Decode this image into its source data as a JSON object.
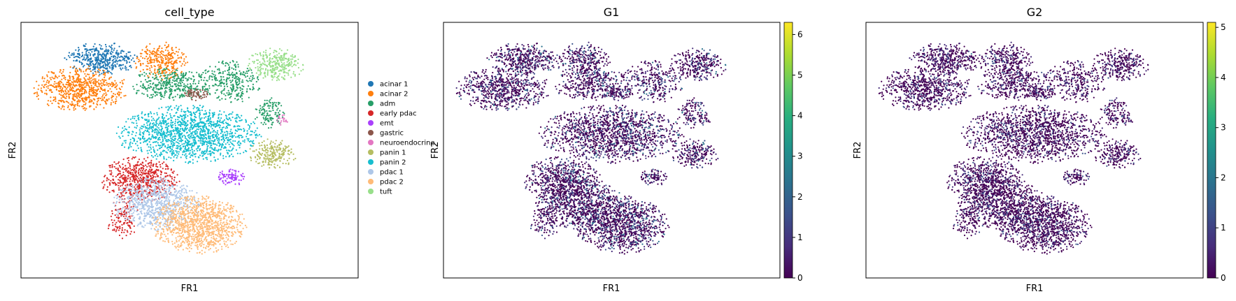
{
  "panels": [
    {
      "title": "cell_type",
      "xlabel": "FR1",
      "ylabel": "FR2",
      "legend": [
        {
          "label": "acinar 1",
          "color": "#1f77b4"
        },
        {
          "label": "acinar 2",
          "color": "#ff7f0e"
        },
        {
          "label": "adm",
          "color": "#279e68"
        },
        {
          "label": "early pdac",
          "color": "#d62728"
        },
        {
          "label": "emt",
          "color": "#aa40fc"
        },
        {
          "label": "gastric",
          "color": "#8c564b"
        },
        {
          "label": "neuroendocrine",
          "color": "#e377c2"
        },
        {
          "label": "panin 1",
          "color": "#b5bd61"
        },
        {
          "label": "panin 2",
          "color": "#17becf"
        },
        {
          "label": "pdac 1",
          "color": "#aec7e8"
        },
        {
          "label": "pdac 2",
          "color": "#ffbb78"
        },
        {
          "label": "tuft",
          "color": "#98df8a"
        }
      ]
    },
    {
      "title": "G1",
      "xlabel": "FR1",
      "ylabel": "FR2",
      "colorbar": {
        "ticks": [
          "0",
          "1",
          "2",
          "3",
          "4",
          "5",
          "6"
        ],
        "min": 0,
        "max": 6.3,
        "cmap": "viridis"
      }
    },
    {
      "title": "G2",
      "xlabel": "FR1",
      "ylabel": "FR2",
      "colorbar": {
        "ticks": [
          "0",
          "1",
          "2",
          "3",
          "4",
          "5"
        ],
        "min": 0,
        "max": 5.1,
        "cmap": "viridis"
      }
    }
  ],
  "chart_data": [
    {
      "type": "scatter",
      "title": "cell_type",
      "xlabel": "FR1",
      "ylabel": "FR2",
      "color_by": "cell_type",
      "categories": [
        "acinar 1",
        "acinar 2",
        "adm",
        "early pdac",
        "emt",
        "gastric",
        "neuroendocrine",
        "panin 1",
        "panin 2",
        "pdac 1",
        "pdac 2",
        "tuft"
      ],
      "legend_position": "right",
      "grid": false
    },
    {
      "type": "scatter",
      "title": "G1",
      "xlabel": "FR1",
      "ylabel": "FR2",
      "color_by": "G1",
      "colormap": "viridis",
      "color_range": [
        0,
        6.3
      ],
      "grid": false
    },
    {
      "type": "scatter",
      "title": "G2",
      "xlabel": "FR1",
      "ylabel": "FR2",
      "color_by": "G2",
      "colormap": "viridis",
      "color_range": [
        0,
        5.1
      ],
      "grid": false
    }
  ]
}
